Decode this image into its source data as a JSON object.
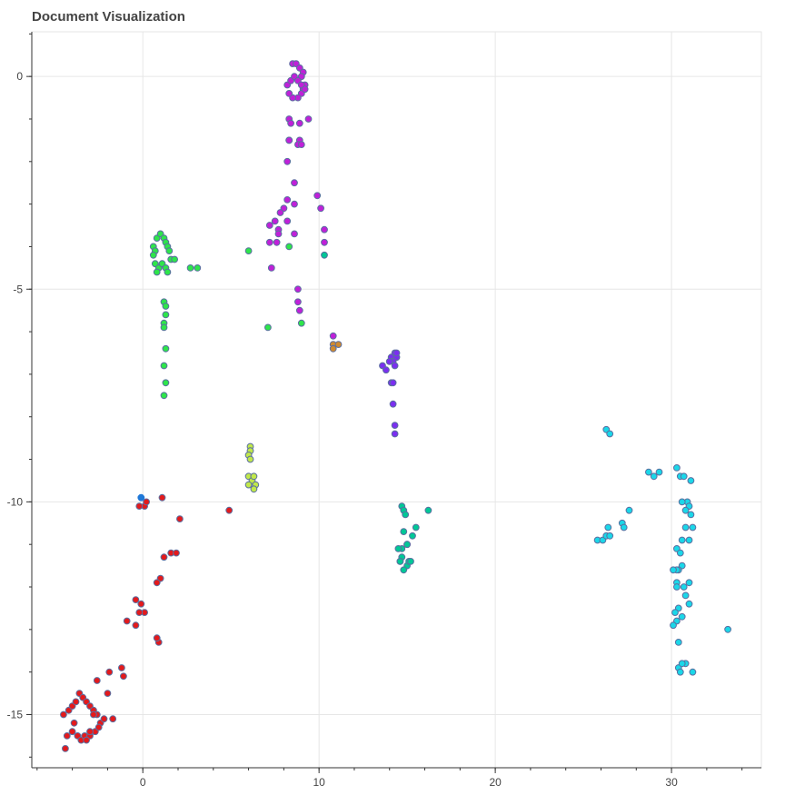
{
  "chart_data": {
    "type": "scatter",
    "title": "Document Visualization",
    "xlabel": "",
    "ylabel": "",
    "xlim": [
      -6.3,
      35.1
    ],
    "ylim": [
      -16.25,
      1.05
    ],
    "x_ticks": [
      0,
      10,
      20,
      30
    ],
    "y_ticks": [
      0,
      -5,
      -10,
      -15
    ],
    "grid": true,
    "legend": "none",
    "point_outline": "#5b6fa0",
    "series": [
      {
        "color": "#e31a1c",
        "x": [
          -4.5,
          -4.2,
          -4.3,
          -4.4,
          -4.0,
          -3.8,
          -3.6,
          -3.4,
          -3.2,
          -3.0,
          -2.8,
          -2.6,
          -2.4,
          -3.7,
          -3.5,
          -3.3,
          -3.0,
          -2.7,
          -2.5,
          -2.2,
          -1.7,
          -2.0,
          -2.6,
          -1.9,
          -1.1,
          -1.2,
          -0.9,
          -0.4,
          -0.1,
          0.1,
          0.1,
          1.1,
          1.0,
          0.8,
          1.2,
          1.6,
          1.9,
          2.1,
          0.9,
          0.8,
          4.9,
          -0.2,
          -0.4,
          -0.2,
          0.2,
          -3.9,
          -3.2,
          -3.0,
          -2.8,
          -4.0
        ],
        "y": [
          -15.0,
          -14.9,
          -15.5,
          -15.8,
          -14.8,
          -14.7,
          -14.5,
          -14.6,
          -14.7,
          -14.8,
          -14.9,
          -15.0,
          -15.2,
          -15.5,
          -15.6,
          -15.5,
          -15.5,
          -15.4,
          -15.3,
          -15.1,
          -15.1,
          -14.5,
          -14.2,
          -14.0,
          -14.1,
          -13.9,
          -12.8,
          -12.3,
          -12.4,
          -12.6,
          -10.1,
          -9.9,
          -11.8,
          -11.9,
          -11.3,
          -11.2,
          -11.2,
          -10.4,
          -13.3,
          -13.2,
          -10.2,
          -10.1,
          -12.9,
          -12.6,
          -10.0,
          -15.2,
          -15.6,
          -15.4,
          -15.0,
          -15.4
        ]
      },
      {
        "color": "#1f78d8",
        "x": [
          -0.1
        ],
        "y": [
          -9.9
        ]
      },
      {
        "color": "#2ee54a",
        "x": [
          0.6,
          0.7,
          0.8,
          1.0,
          1.2,
          1.3,
          1.4,
          1.5,
          1.6,
          1.8,
          0.7,
          0.9,
          1.1,
          1.3,
          1.4,
          0.6,
          0.8,
          1.2,
          1.3,
          1.3,
          1.2,
          1.2,
          1.2,
          1.3,
          1.2,
          2.7,
          3.1,
          6.0,
          7.1,
          9.0,
          8.3,
          1.3
        ],
        "y": [
          -4.0,
          -4.1,
          -3.8,
          -3.7,
          -3.8,
          -3.9,
          -4.0,
          -4.1,
          -4.3,
          -4.3,
          -4.4,
          -4.5,
          -4.4,
          -4.5,
          -4.6,
          -4.2,
          -4.6,
          -5.3,
          -5.4,
          -5.6,
          -5.8,
          -5.9,
          -6.8,
          -7.2,
          -7.5,
          -4.5,
          -4.5,
          -4.1,
          -5.9,
          -5.8,
          -4.0,
          -6.4
        ]
      },
      {
        "color": "#c1e84a",
        "x": [
          6.1,
          6.1,
          6.0,
          6.1,
          6.0,
          6.2,
          6.4,
          6.3,
          6.0,
          6.3
        ],
        "y": [
          -8.7,
          -8.8,
          -8.9,
          -9.0,
          -9.4,
          -9.5,
          -9.6,
          -9.7,
          -9.6,
          -9.4
        ]
      },
      {
        "color": "#c020d8",
        "x": [
          8.5,
          8.7,
          8.9,
          9.1,
          9.0,
          9.2,
          9.1,
          9.0,
          8.8,
          8.5,
          8.3,
          8.2,
          8.4,
          8.6,
          8.8,
          9.0,
          9.2,
          8.3,
          8.4,
          8.9,
          9.4,
          8.3,
          8.3,
          8.9,
          8.8,
          9.0,
          8.2,
          8.6,
          8.2,
          8.6,
          8.0,
          7.8,
          8.2,
          7.5,
          7.2,
          7.7,
          7.7,
          7.2,
          7.6,
          8.6,
          9.9,
          10.1,
          10.3,
          10.3,
          8.8,
          8.8,
          8.9,
          10.8,
          7.3
        ],
        "y": [
          0.3,
          0.3,
          0.2,
          0.1,
          0.0,
          -0.2,
          -0.3,
          -0.4,
          -0.5,
          -0.5,
          -0.4,
          -0.2,
          -0.1,
          0.0,
          -0.1,
          -0.2,
          -0.3,
          -1.0,
          -1.1,
          -1.1,
          -1.0,
          -1.5,
          -1.5,
          -1.5,
          -1.6,
          -1.6,
          -2.0,
          -2.5,
          -2.9,
          -3.0,
          -3.1,
          -3.2,
          -3.4,
          -3.4,
          -3.5,
          -3.6,
          -3.7,
          -3.9,
          -3.9,
          -3.7,
          -2.8,
          -3.1,
          -3.6,
          -3.9,
          -5.0,
          -5.3,
          -5.5,
          -6.1,
          -4.5
        ]
      },
      {
        "color": "#7b2ff0",
        "x": [
          14.1,
          14.3,
          14.4,
          14.2,
          14.0,
          14.3,
          13.6,
          14.1,
          14.2,
          13.8,
          14.2,
          14.3,
          14.3,
          14.4
        ],
        "y": [
          -6.6,
          -6.5,
          -6.6,
          -6.7,
          -6.7,
          -6.8,
          -6.8,
          -7.2,
          -7.2,
          -6.9,
          -7.7,
          -8.2,
          -8.4,
          -6.5
        ]
      },
      {
        "color": "#d08a2e",
        "x": [
          10.8,
          11.1,
          10.8
        ],
        "y": [
          -6.3,
          -6.3,
          -6.4
        ]
      },
      {
        "color": "#00c896",
        "x": [
          14.7,
          14.8,
          14.9,
          14.8,
          14.7,
          15.0,
          15.3,
          15.5,
          14.5,
          14.7,
          14.6,
          15.0,
          14.8,
          14.6,
          15.1,
          15.2,
          15.0,
          16.2,
          10.3
        ],
        "y": [
          -10.1,
          -10.2,
          -10.3,
          -10.7,
          -11.1,
          -11.0,
          -10.8,
          -10.6,
          -11.1,
          -11.3,
          -11.4,
          -11.5,
          -11.6,
          -11.4,
          -11.4,
          -11.4,
          -11.0,
          -10.2,
          -4.2
        ]
      },
      {
        "color": "#1ad7e8",
        "x": [
          26.3,
          26.5,
          25.8,
          26.1,
          26.3,
          26.5,
          26.4,
          27.2,
          27.3,
          27.6,
          28.7,
          29.0,
          29.3,
          30.3,
          30.5,
          30.7,
          31.1,
          30.9,
          31.0,
          30.6,
          30.8,
          31.1,
          31.2,
          30.8,
          30.6,
          31.0,
          30.3,
          30.5,
          30.6,
          30.4,
          30.3,
          30.1,
          30.3,
          30.3,
          30.7,
          31.0,
          30.8,
          31.0,
          30.4,
          30.2,
          30.3,
          30.1,
          30.4,
          30.6,
          30.8,
          30.4,
          30.5,
          30.6,
          31.2,
          33.2
        ],
        "y": [
          -8.3,
          -8.4,
          -10.9,
          -10.9,
          -10.8,
          -10.8,
          -10.6,
          -10.5,
          -10.6,
          -10.2,
          -9.3,
          -9.4,
          -9.3,
          -9.2,
          -9.4,
          -9.4,
          -9.5,
          -10.0,
          -10.1,
          -10.0,
          -10.2,
          -10.3,
          -10.6,
          -10.6,
          -10.9,
          -10.9,
          -11.1,
          -11.2,
          -11.5,
          -11.6,
          -11.6,
          -11.6,
          -11.9,
          -12.0,
          -12.0,
          -11.9,
          -12.2,
          -12.4,
          -12.5,
          -12.6,
          -12.8,
          -12.9,
          -13.3,
          -12.7,
          -13.8,
          -13.9,
          -14.0,
          -13.8,
          -14.0,
          -13.0
        ]
      }
    ]
  }
}
